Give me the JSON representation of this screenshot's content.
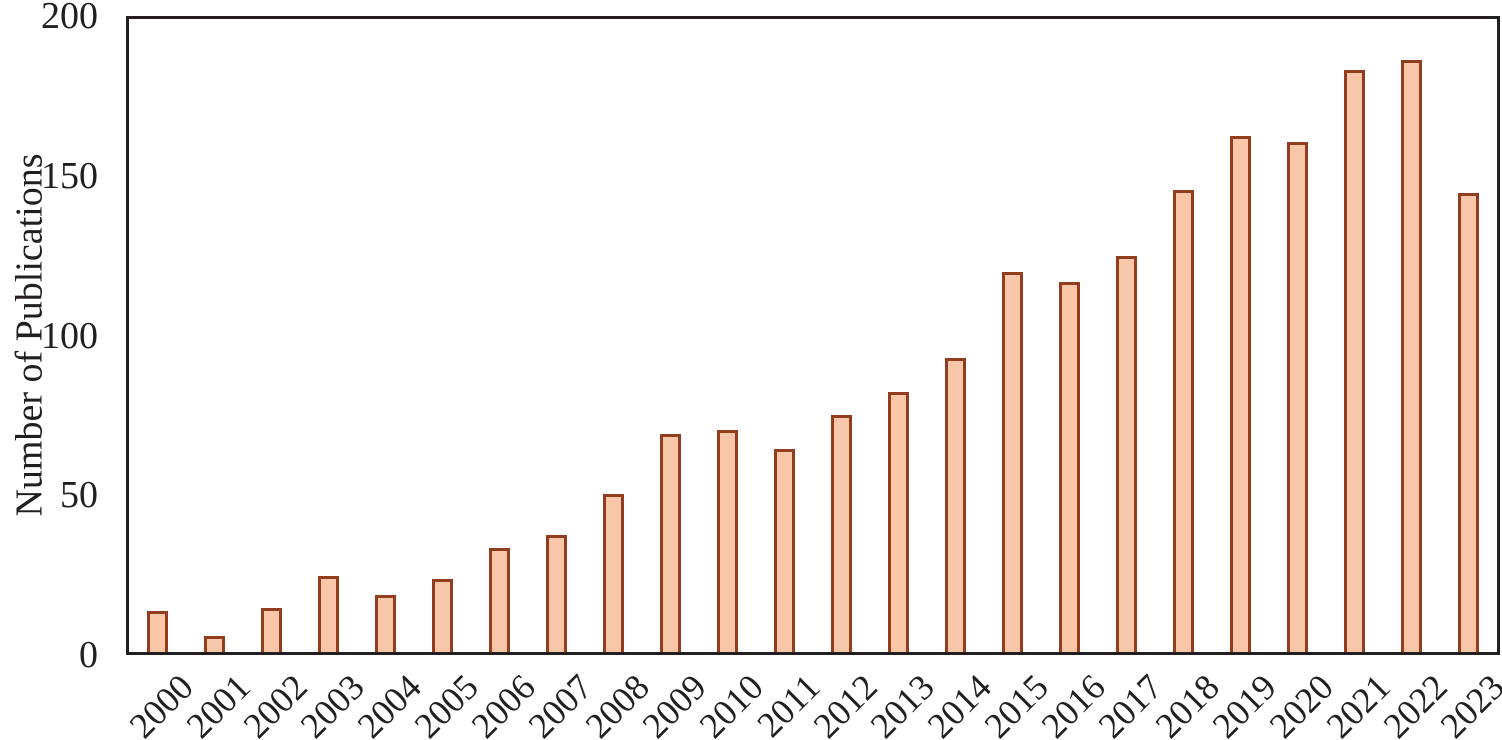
{
  "chart_data": {
    "type": "bar",
    "title": "",
    "xlabel": "",
    "ylabel": "Number of Publications",
    "categories": [
      "2000",
      "2001",
      "2002",
      "2003",
      "2004",
      "2005",
      "2006",
      "2007",
      "2008",
      "2009",
      "2010",
      "2011",
      "2012",
      "2013",
      "2014",
      "2015",
      "2016",
      "2017",
      "2018",
      "2019",
      "2020",
      "2021",
      "2022",
      "2023"
    ],
    "values": [
      13,
      5,
      14,
      24,
      18,
      23,
      33,
      37,
      50,
      69,
      70,
      64,
      75,
      82,
      93,
      120,
      117,
      125,
      146,
      163,
      161,
      184,
      187,
      145
    ],
    "ylim": [
      0,
      200
    ],
    "yticks": [
      0,
      50,
      100,
      150,
      200
    ],
    "grid": false,
    "legend": null,
    "colors": {
      "bar_fill": "#F8C7A9",
      "bar_border": "#933D1F",
      "frame": "#231F20",
      "text": "#231F20",
      "background": "#ffffff"
    }
  }
}
